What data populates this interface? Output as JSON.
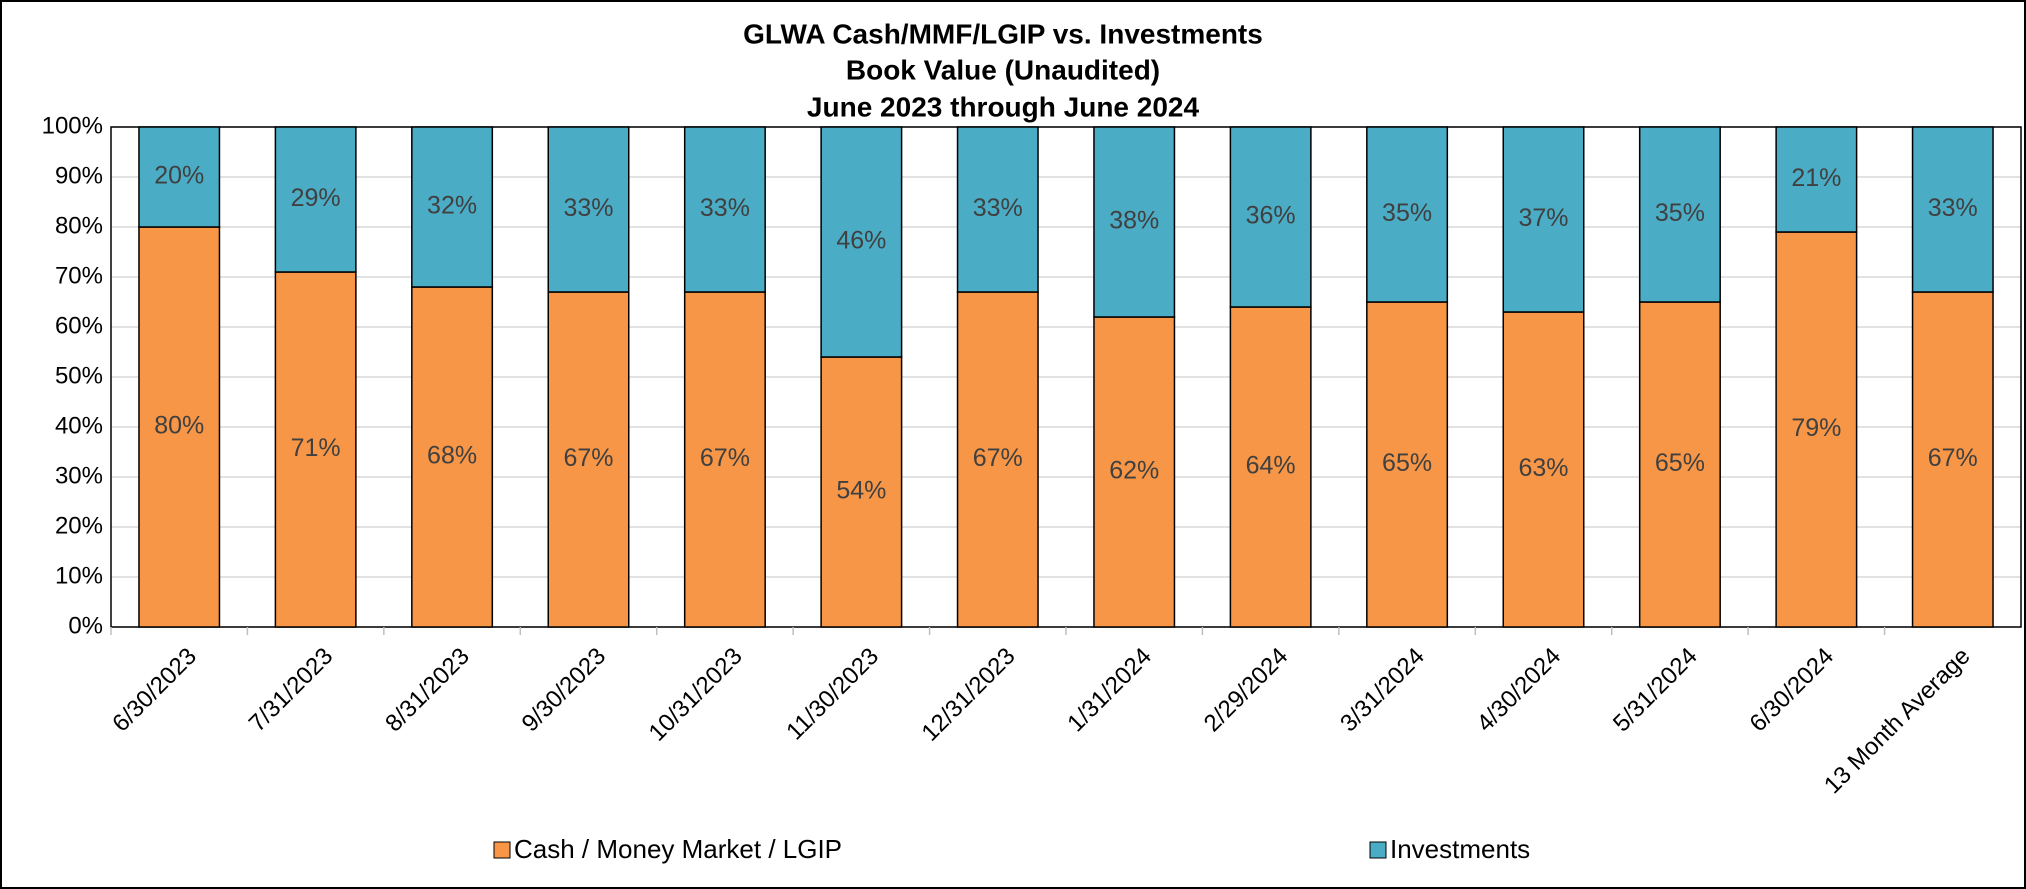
{
  "chart_data": {
    "type": "stacked_bar",
    "title": [
      "GLWA Cash/MMF/LGIP vs. Investments",
      "Book Value (Unaudited)",
      "June 2023 through June 2024"
    ],
    "categories": [
      "6/30/2023",
      "7/31/2023",
      "8/31/2023",
      "9/30/2023",
      "10/31/2023",
      "11/30/2023",
      "12/31/2023",
      "1/31/2024",
      "2/29/2024",
      "3/31/2024",
      "4/30/2024",
      "5/31/2024",
      "6/30/2024",
      "13 Month Average"
    ],
    "series": [
      {
        "name": "Cash / Money Market / LGIP",
        "color": "#f79646",
        "values": [
          80,
          71,
          68,
          67,
          67,
          54,
          67,
          62,
          64,
          65,
          63,
          65,
          79,
          67
        ],
        "value_labels": [
          "80%",
          "71%",
          "68%",
          "67%",
          "67%",
          "54%",
          "67%",
          "62%",
          "64%",
          "65%",
          "63%",
          "65%",
          "79%",
          "67%"
        ]
      },
      {
        "name": "Investments",
        "color": "#4bacc6",
        "values": [
          20,
          29,
          32,
          33,
          33,
          46,
          33,
          38,
          36,
          35,
          37,
          35,
          21,
          33
        ],
        "value_labels": [
          "20%",
          "29%",
          "32%",
          "33%",
          "33%",
          "46%",
          "33%",
          "38%",
          "36%",
          "35%",
          "37%",
          "35%",
          "21%",
          "33%"
        ]
      }
    ],
    "ylim": [
      0,
      100
    ],
    "yticks": [
      {
        "value": 0,
        "label": "0%"
      },
      {
        "value": 10,
        "label": "10%"
      },
      {
        "value": 20,
        "label": "20%"
      },
      {
        "value": 30,
        "label": "30%"
      },
      {
        "value": 40,
        "label": "40%"
      },
      {
        "value": 50,
        "label": "50%"
      },
      {
        "value": 60,
        "label": "60%"
      },
      {
        "value": 70,
        "label": "70%"
      },
      {
        "value": 80,
        "label": "80%"
      },
      {
        "value": 90,
        "label": "90%"
      },
      {
        "value": 100,
        "label": "100%"
      }
    ],
    "grid": true,
    "legend": "bottom"
  }
}
